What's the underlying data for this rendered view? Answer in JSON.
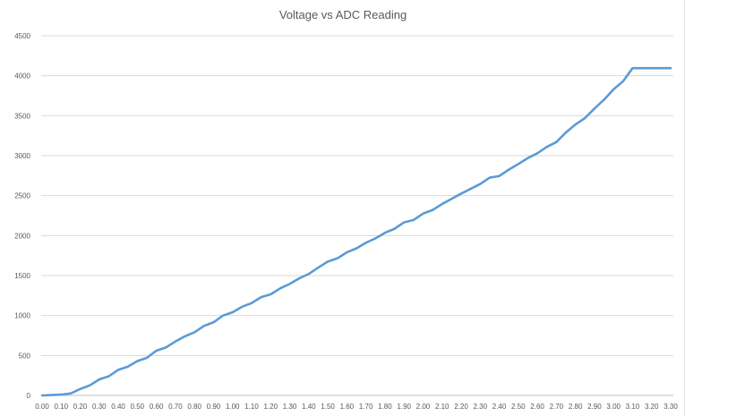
{
  "chart_data": {
    "type": "line",
    "title": "Voltage vs ADC Reading",
    "xlabel": "",
    "ylabel": "",
    "ylim": [
      0,
      4500
    ],
    "yticks": [
      0,
      500,
      1000,
      1500,
      2000,
      2500,
      3000,
      3500,
      4000,
      4500
    ],
    "categories": [
      "0.00",
      "0.05",
      "0.10",
      "0.15",
      "0.20",
      "0.25",
      "0.30",
      "0.35",
      "0.40",
      "0.45",
      "0.50",
      "0.55",
      "0.60",
      "0.65",
      "0.70",
      "0.75",
      "0.80",
      "0.85",
      "0.90",
      "0.95",
      "1.00",
      "1.05",
      "1.10",
      "1.15",
      "1.20",
      "1.25",
      "1.30",
      "1.35",
      "1.40",
      "1.45",
      "1.50",
      "1.55",
      "1.60",
      "1.65",
      "1.70",
      "1.75",
      "1.80",
      "1.85",
      "1.90",
      "1.95",
      "2.00",
      "2.05",
      "2.10",
      "2.15",
      "2.20",
      "2.25",
      "2.30",
      "2.35",
      "2.40",
      "2.45",
      "2.50",
      "2.55",
      "2.60",
      "2.65",
      "2.70",
      "2.75",
      "2.80",
      "2.85",
      "2.90",
      "2.95",
      "3.00",
      "3.05",
      "3.10",
      "3.15",
      "3.20",
      "3.25",
      "3.30"
    ],
    "tick_labels": [
      "0.00",
      "0.10",
      "0.20",
      "0.30",
      "0.40",
      "0.50",
      "0.60",
      "0.70",
      "0.80",
      "0.90",
      "1.00",
      "1.10",
      "1.20",
      "1.30",
      "1.40",
      "1.50",
      "1.60",
      "1.70",
      "1.80",
      "1.90",
      "2.00",
      "2.10",
      "2.20",
      "2.30",
      "2.40",
      "2.50",
      "2.60",
      "2.70",
      "2.80",
      "2.90",
      "3.00",
      "3.10",
      "3.20",
      "3.30"
    ],
    "series": [
      {
        "values": [
          0,
          5,
          10,
          25,
          80,
          125,
          200,
          240,
          320,
          360,
          430,
          470,
          560,
          600,
          675,
          740,
          790,
          870,
          915,
          1000,
          1040,
          1110,
          1155,
          1230,
          1265,
          1340,
          1395,
          1465,
          1520,
          1600,
          1675,
          1715,
          1790,
          1840,
          1910,
          1965,
          2035,
          2085,
          2165,
          2195,
          2275,
          2320,
          2395,
          2460,
          2525,
          2585,
          2645,
          2725,
          2745,
          2825,
          2895,
          2970,
          3030,
          3110,
          3170,
          3290,
          3390,
          3470,
          3590,
          3700,
          3830,
          3930,
          4095,
          4095,
          4095,
          4095,
          4095
        ]
      }
    ],
    "grid": true,
    "legend": "none",
    "colors": {
      "line": "#5b9bd5",
      "grid": "#d9d9d9",
      "axis": "#bfbfbf",
      "text": "#595959"
    }
  }
}
